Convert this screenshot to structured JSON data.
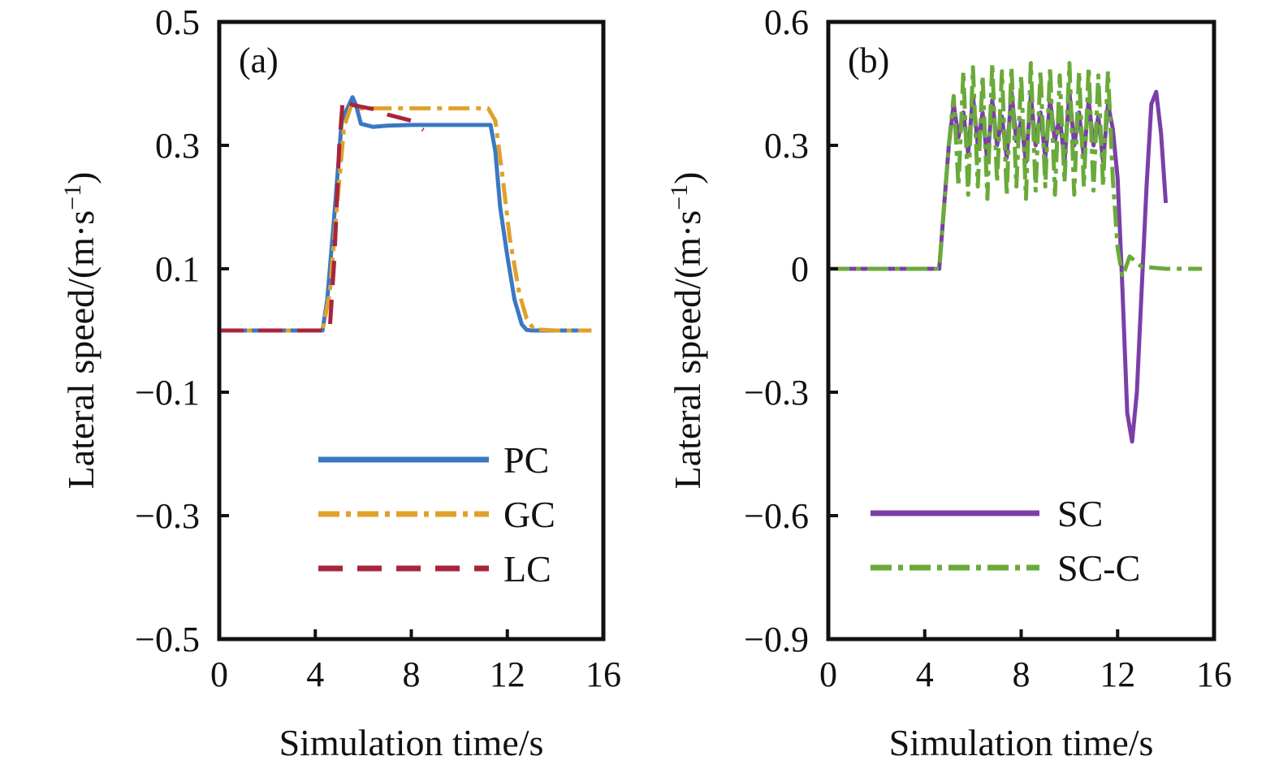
{
  "chart_data": [
    {
      "type": "line",
      "panel_label": "(a)",
      "xlabel": "Simulation time/s",
      "ylabel": "Lateral speed/(m·s",
      "ylabel_sup": "−1",
      "ylabel_close": ")",
      "xlim": [
        0,
        16
      ],
      "ylim": [
        -0.5,
        0.5
      ],
      "xticks": [
        0,
        4,
        8,
        12,
        16
      ],
      "xtick_labels": [
        "0",
        "4",
        "8",
        "12",
        "16"
      ],
      "yticks": [
        -0.5,
        -0.3,
        -0.1,
        0.1,
        0.3,
        0.5
      ],
      "ytick_labels": [
        "−0.5",
        "−0.3",
        "−0.1",
        "0.1",
        "0.3",
        "0.5"
      ],
      "legend_position": "bottom-right",
      "series": [
        {
          "name": "PC",
          "color": "#3a78c2",
          "style": "solid",
          "x": [
            0,
            4.3,
            4.5,
            4.8,
            5.1,
            5.4,
            5.55,
            5.7,
            5.9,
            6.4,
            7.0,
            8.0,
            9.0,
            10.0,
            11.0,
            11.3,
            11.5,
            11.7,
            12.0,
            12.3,
            12.6,
            12.8,
            13.0,
            14.0,
            15.5
          ],
          "y": [
            0,
            0,
            0.05,
            0.19,
            0.34,
            0.365,
            0.378,
            0.365,
            0.335,
            0.33,
            0.332,
            0.333,
            0.333,
            0.333,
            0.333,
            0.333,
            0.29,
            0.2,
            0.12,
            0.05,
            0.01,
            0.001,
            0,
            0,
            0
          ]
        },
        {
          "name": "GC",
          "color": "#e0a12a",
          "style": "dashdot",
          "x": [
            0,
            4.3,
            4.6,
            4.9,
            5.2,
            5.5,
            5.8,
            6.5,
            8.0,
            9.5,
            11.2,
            11.5,
            11.8,
            12.1,
            12.5,
            12.8,
            13.1,
            14.0,
            15.5
          ],
          "y": [
            0,
            0,
            0.06,
            0.2,
            0.33,
            0.365,
            0.36,
            0.36,
            0.36,
            0.36,
            0.36,
            0.34,
            0.25,
            0.15,
            0.06,
            0.02,
            0.002,
            0,
            0
          ]
        },
        {
          "name": "LC",
          "color": "#a8243c",
          "style": "dashed",
          "x": [
            0,
            4.6,
            4.8,
            5.0,
            5.15,
            5.3,
            5.6,
            6.0,
            6.5,
            7.0,
            7.5,
            8.0,
            8.3,
            8.5
          ],
          "y": [
            0,
            0,
            0.12,
            0.3,
            0.375,
            0.37,
            0.365,
            0.362,
            0.358,
            0.35,
            0.345,
            0.34,
            0.33,
            0.325
          ]
        }
      ]
    },
    {
      "type": "line",
      "panel_label": "(b)",
      "xlabel": "Simulation time/s",
      "ylabel": "Lateral speed/(m·s",
      "ylabel_sup": "−1",
      "ylabel_close": ")",
      "xlim": [
        0,
        16
      ],
      "ylim": [
        -0.9,
        0.6
      ],
      "xticks": [
        0,
        4,
        8,
        12,
        16
      ],
      "xtick_labels": [
        "0",
        "4",
        "8",
        "12",
        "16"
      ],
      "yticks": [
        -0.9,
        -0.6,
        -0.3,
        0,
        0.3,
        0.6
      ],
      "ytick_labels": [
        "−0.9",
        "−0.6",
        "−0.3",
        "0",
        "0.3",
        "0.6"
      ],
      "legend_position": "bottom-right",
      "series": [
        {
          "name": "SC",
          "color": "#7b3fa8",
          "style": "solid",
          "x": [
            0,
            4.6,
            4.8,
            5.0,
            5.2,
            5.4,
            5.6,
            5.8,
            6.0,
            6.2,
            6.4,
            6.6,
            6.8,
            7.0,
            7.2,
            7.4,
            7.6,
            7.8,
            8.0,
            8.2,
            8.4,
            8.6,
            8.8,
            9.0,
            9.2,
            9.4,
            9.6,
            9.8,
            10.0,
            10.2,
            10.4,
            10.6,
            10.8,
            11.0,
            11.2,
            11.4,
            11.6,
            11.8,
            12.0,
            12.2,
            12.4,
            12.6,
            12.8,
            13.0,
            13.2,
            13.4,
            13.6,
            13.8,
            14.0
          ],
          "y": [
            0,
            0,
            0.15,
            0.3,
            0.4,
            0.32,
            0.38,
            0.28,
            0.42,
            0.3,
            0.38,
            0.26,
            0.41,
            0.3,
            0.37,
            0.27,
            0.43,
            0.31,
            0.36,
            0.26,
            0.42,
            0.3,
            0.38,
            0.27,
            0.41,
            0.31,
            0.37,
            0.26,
            0.43,
            0.3,
            0.38,
            0.27,
            0.41,
            0.3,
            0.37,
            0.26,
            0.4,
            0.34,
            0.22,
            -0.05,
            -0.35,
            -0.42,
            -0.3,
            -0.05,
            0.2,
            0.4,
            0.43,
            0.33,
            0.16
          ]
        },
        {
          "name": "SC-C",
          "color": "#6aaa3a",
          "style": "dashdot",
          "x": [
            0,
            4.6,
            4.8,
            5.0,
            5.2,
            5.4,
            5.6,
            5.8,
            6.0,
            6.2,
            6.4,
            6.6,
            6.8,
            7.0,
            7.2,
            7.4,
            7.6,
            7.8,
            8.0,
            8.2,
            8.4,
            8.6,
            8.8,
            9.0,
            9.2,
            9.4,
            9.6,
            9.8,
            10.0,
            10.2,
            10.4,
            10.6,
            10.8,
            11.0,
            11.2,
            11.4,
            11.6,
            11.8,
            12.0,
            12.2,
            12.5,
            13.0,
            14.0,
            15.5
          ],
          "y": [
            0,
            0,
            0.15,
            0.3,
            0.42,
            0.2,
            0.48,
            0.18,
            0.49,
            0.2,
            0.47,
            0.17,
            0.5,
            0.21,
            0.48,
            0.18,
            0.49,
            0.2,
            0.47,
            0.17,
            0.5,
            0.19,
            0.48,
            0.2,
            0.49,
            0.18,
            0.47,
            0.21,
            0.5,
            0.18,
            0.48,
            0.2,
            0.49,
            0.19,
            0.47,
            0.2,
            0.48,
            0.22,
            0.05,
            -0.02,
            0.03,
            0.005,
            0,
            0
          ]
        }
      ]
    }
  ]
}
